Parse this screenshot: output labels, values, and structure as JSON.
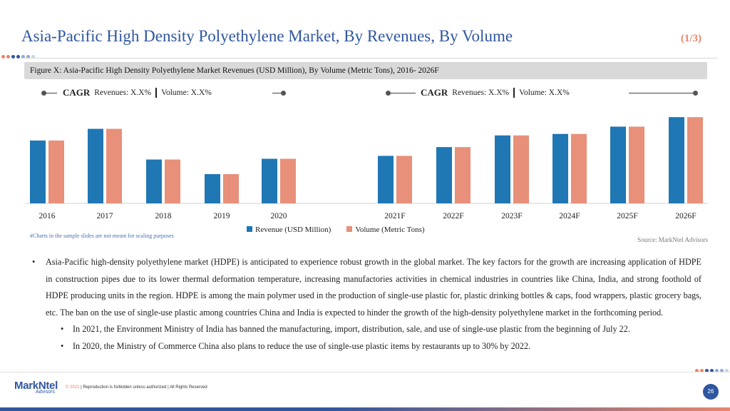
{
  "header": {
    "title": "Asia-Pacific High Density Polyethylene Market, By Revenues, By Volume",
    "page_indicator": "(1/3)"
  },
  "figure_caption": "Figure X: Asia-Pacific High Density Polyethylene Market Revenues (USD Million), By Volume (Metric Tons), 2016- 2026F",
  "cagr_left": {
    "label": "CAGR",
    "revenues": "Revenues: X.X%",
    "volume": "Volume: X.X%"
  },
  "cagr_right": {
    "label": "CAGR",
    "revenues": "Revenues: X.X%",
    "volume": "Volume: X.X%"
  },
  "chart_data": {
    "type": "bar",
    "categories": [
      "2016",
      "2017",
      "2018",
      "2019",
      "2020",
      "2021F",
      "2022F",
      "2023F",
      "2024F",
      "2025F",
      "2026F"
    ],
    "series": [
      {
        "name": "Revenue (USD Million)",
        "color": "#1f77b4",
        "values": [
          86,
          102,
          60,
          40,
          61,
          65,
          77,
          93,
          95,
          105,
          118
        ]
      },
      {
        "name": "Volume (Metric Tons)",
        "color": "#e8907a",
        "values": [
          86,
          102,
          60,
          40,
          61,
          65,
          77,
          93,
          95,
          105,
          118
        ]
      }
    ],
    "ylim": [
      0,
      125
    ],
    "grid": false,
    "legend": "bottom-center"
  },
  "chart_note": "#Charts in the sample slides are not meant for scaling purposes",
  "source": "Source: MarkNtel Advisors",
  "bullets": {
    "main": "Asia-Pacific high-density polyethylene market (HDPE) is anticipated to experience robust growth in the global market. The key factors for the growth are increasing application of HDPE in construction pipes due to its lower thermal deformation temperature, increasing manufactories activities in chemical industries in countries like China, India, and strong foothold of HDPE producing units in the region. HDPE is among the main polymer used in the production of single-use plastic for, plastic drinking bottles & caps, food wrappers, plastic grocery bags, etc. The ban on the use of single-use plastic among countries China and India is expected to hinder the growth of the high-density polyethylene market in the forthcoming period.",
    "sub1": "In 2021, the Environment Ministry of India has banned the manufacturing, import, distribution, sale, and use of single-use plastic from the beginning of July 22.",
    "sub2": "In 2020, the Ministry of Commerce China also plans to reduce the use of single-use plastic items by restaurants up to 30% by 2022."
  },
  "footer": {
    "logo_main": "MarkNtel",
    "logo_sub": "Advisors",
    "copyright_year": "© 2021",
    "copyright_text": "| Reproduction is forbidden unless authorized | All Rights Reserved",
    "page_number": "26"
  },
  "colors": {
    "accent": "#2f56a0",
    "highlight": "#e8866b"
  }
}
